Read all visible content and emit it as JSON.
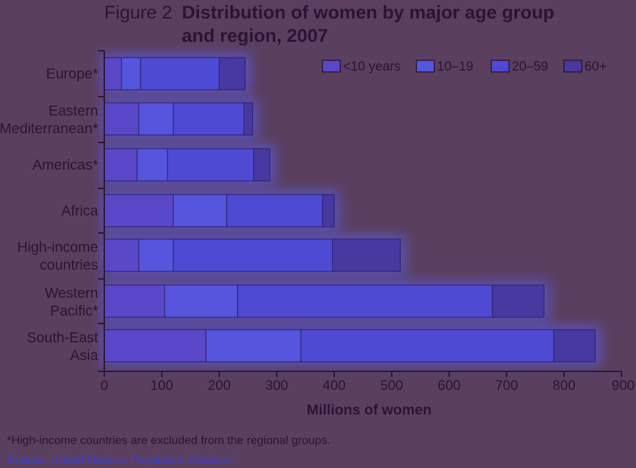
{
  "figure": {
    "prefix": "Figure 2",
    "title_line1": "Distribution of women by major age group",
    "title_line2": "and region, 2007"
  },
  "chart_data": {
    "type": "bar",
    "orientation": "horizontal",
    "stacked": true,
    "categories": [
      "Europe*",
      "Eastern Mediterranean*",
      "Americas*",
      "Africa",
      "High-income countries",
      "Western Pacific*",
      "South-East Asia"
    ],
    "series": [
      {
        "name": "<10 years",
        "values": [
          30,
          60,
          57,
          120,
          60,
          105,
          177
        ]
      },
      {
        "name": "10–19",
        "values": [
          33,
          60,
          53,
          93,
          60,
          127,
          165
        ]
      },
      {
        "name": "20–59",
        "values": [
          137,
          123,
          150,
          167,
          277,
          443,
          440
        ]
      },
      {
        "name": "60+",
        "values": [
          45,
          15,
          28,
          20,
          118,
          90,
          72
        ]
      }
    ],
    "series_colors": [
      "#5a48c8",
      "#5555dd",
      "#4e4ad4",
      "#47399f"
    ],
    "xlabel": "Millions of women",
    "ylabel": "",
    "xlim": [
      0,
      900
    ],
    "xticks": [
      "0",
      "100",
      "200",
      "300",
      "400",
      "500",
      "600",
      "700",
      "800",
      "900"
    ],
    "legend_position": "top-right",
    "grid": false
  },
  "footnote": "*High-income countries are excluded from the regional groups.",
  "source": "Source: United Nations Population Division.²"
}
